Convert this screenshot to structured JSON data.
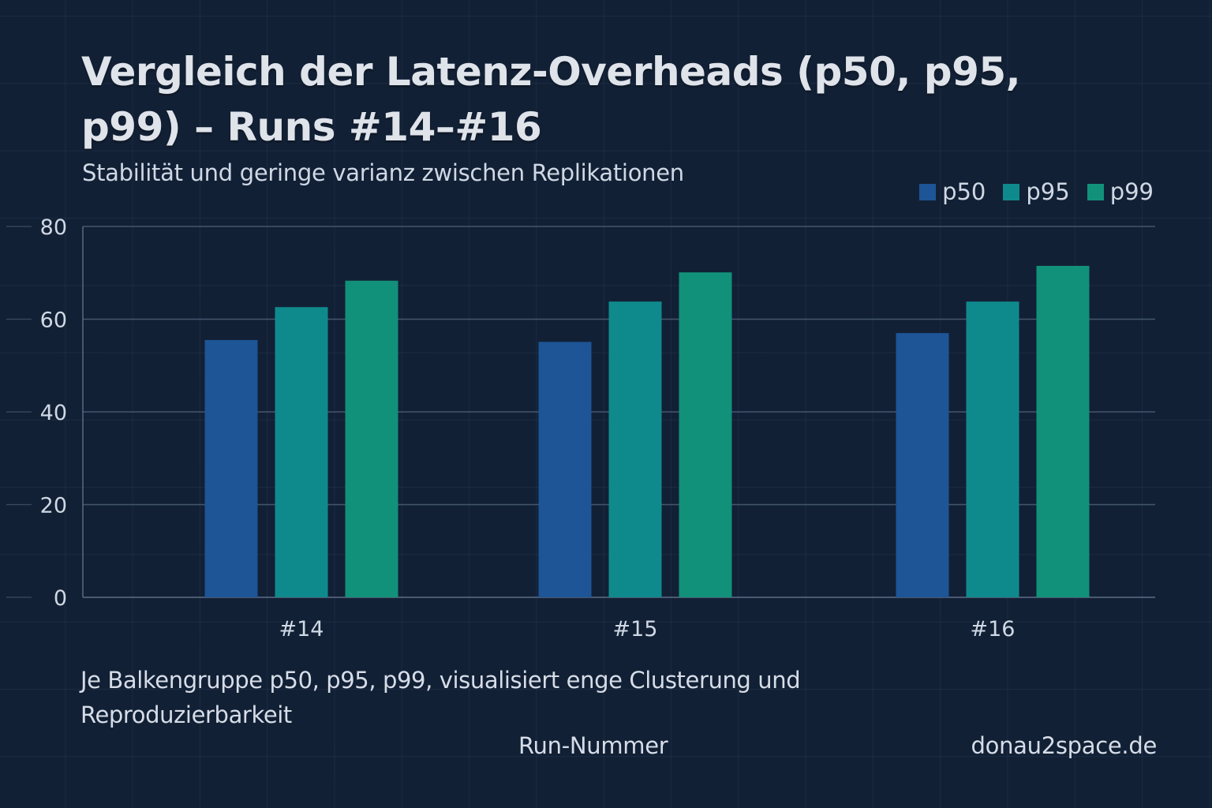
{
  "chart_data": {
    "type": "bar",
    "title": "Vergleich der Latenz-Overheads (p50, p95, p99) – Runs #14–#16",
    "subtitle": "Stabilität und geringe varianz zwischen Replikationen",
    "xlabel": "Run-Nummer",
    "ylabel": "",
    "categories": [
      "#14",
      "#15",
      "#16"
    ],
    "series": [
      {
        "name": "p50",
        "color": "#1d5596",
        "values": [
          55.5,
          55.1,
          57.0
        ]
      },
      {
        "name": "p95",
        "color": "#0f8a8c",
        "values": [
          62.6,
          63.8,
          63.8
        ]
      },
      {
        "name": "p99",
        "color": "#12917a",
        "values": [
          68.3,
          70.1,
          71.5
        ]
      }
    ],
    "ylim": [
      0,
      80
    ],
    "yticks": [
      0,
      20,
      40,
      60,
      80
    ],
    "grid": true,
    "legend_position": "top-right",
    "annotation": "Je Balkengruppe p50, p95, p99, visualisiert enge Clusterung und Reproduzierbarkeit",
    "watermark": "donau2space.de"
  }
}
